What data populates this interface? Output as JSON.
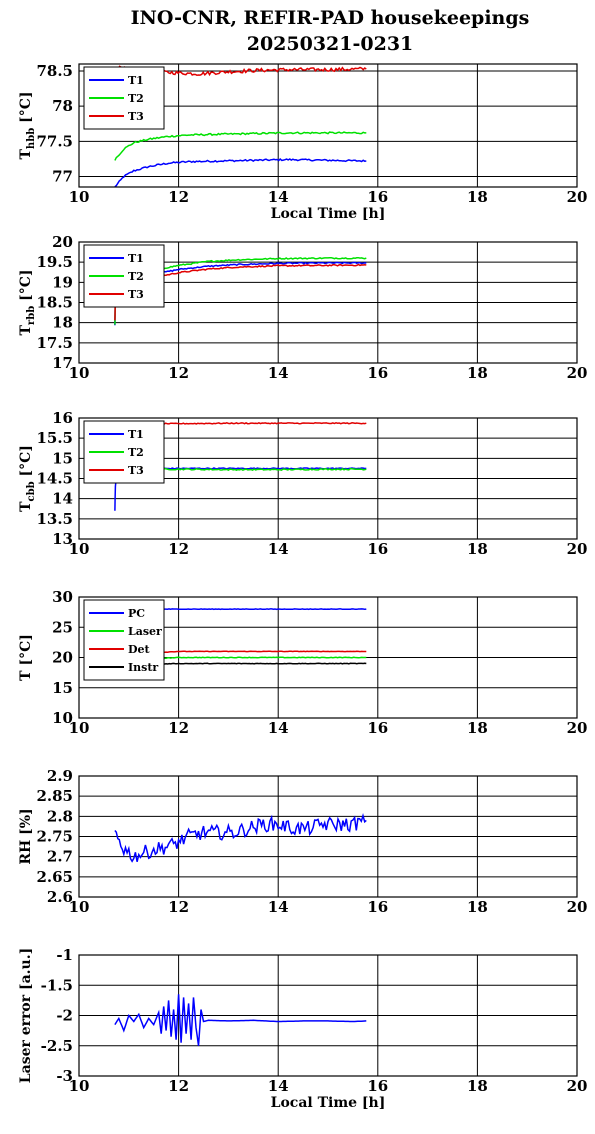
{
  "title": {
    "line1": "INO-CNR, REFIR-PAD housekeepings",
    "line2": "20250321-0231"
  },
  "colors": {
    "blue": "#0000ff",
    "green": "#00e000",
    "red": "#e00000",
    "black": "#000000"
  },
  "chart_data": [
    {
      "type": "line",
      "ylabel": "T_hbb [°C]",
      "ylabel_main": "T",
      "ylabel_sub": "hbb",
      "ylabel_unit": " [°C]",
      "xlabel": "Local Time [h]",
      "xlim": [
        10,
        20
      ],
      "ylim": [
        76.85,
        78.6
      ],
      "xticks": [
        10,
        12,
        14,
        16,
        18,
        20
      ],
      "xtick_labels": [
        "10",
        "12",
        "14",
        "16",
        "18",
        "20"
      ],
      "yticks": [
        77,
        77.5,
        78,
        78.5
      ],
      "ytick_labels": [
        "77",
        "77.5",
        "78",
        "78.5"
      ],
      "grid": true,
      "legend_position": "top-left",
      "series": [
        {
          "name": "T1",
          "color": "#0000ff",
          "noise": 0.012,
          "x": [
            10.72,
            10.9,
            11.1,
            11.4,
            11.8,
            12.2,
            12.8,
            13.5,
            14.2,
            15.0,
            15.77
          ],
          "y": [
            76.85,
            77.0,
            77.08,
            77.14,
            77.19,
            77.21,
            77.22,
            77.23,
            77.24,
            77.23,
            77.22
          ]
        },
        {
          "name": "T2",
          "color": "#00e000",
          "noise": 0.012,
          "x": [
            10.72,
            10.9,
            11.1,
            11.4,
            11.8,
            12.2,
            12.8,
            13.5,
            14.2,
            15.0,
            15.77
          ],
          "y": [
            77.24,
            77.39,
            77.48,
            77.53,
            77.57,
            77.59,
            77.6,
            77.61,
            77.62,
            77.62,
            77.62
          ]
        },
        {
          "name": "T3",
          "color": "#e00000",
          "noise": 0.025,
          "x": [
            10.72,
            11.2,
            11.8,
            12.4,
            13.0,
            13.6,
            14.2,
            15.0,
            15.77
          ],
          "y": [
            78.55,
            78.51,
            78.48,
            78.46,
            78.49,
            78.51,
            78.52,
            78.52,
            78.53
          ]
        }
      ]
    },
    {
      "type": "line",
      "ylabel": "T_rbb [°C]",
      "ylabel_main": "T",
      "ylabel_sub": "rbb",
      "ylabel_unit": " [°C]",
      "xlabel": "",
      "xlim": [
        10,
        20
      ],
      "ylim": [
        17,
        20
      ],
      "xticks": [
        10,
        12,
        14,
        16,
        18,
        20
      ],
      "xtick_labels": [
        "10",
        "12",
        "14",
        "16",
        "18",
        "20"
      ],
      "yticks": [
        17,
        17.5,
        18,
        18.5,
        19,
        19.5,
        20
      ],
      "ytick_labels": [
        "17",
        "17.5",
        "18",
        "18.5",
        "19",
        "19.5",
        "20"
      ],
      "grid": true,
      "legend_position": "top-left",
      "series": [
        {
          "name": "T1",
          "color": "#0000ff",
          "noise": 0.015,
          "x": [
            10.72,
            10.73,
            10.76,
            11.0,
            11.5,
            12.0,
            12.6,
            13.2,
            14.0,
            15.0,
            15.77
          ],
          "y": [
            17.95,
            18.6,
            19.0,
            19.1,
            19.2,
            19.32,
            19.4,
            19.44,
            19.47,
            19.48,
            19.48
          ]
        },
        {
          "name": "T2",
          "color": "#00e000",
          "noise": 0.015,
          "x": [
            10.72,
            10.73,
            10.76,
            11.0,
            11.5,
            12.0,
            12.6,
            13.2,
            14.0,
            15.0,
            15.77
          ],
          "y": [
            17.95,
            18.65,
            19.05,
            19.18,
            19.3,
            19.42,
            19.52,
            19.56,
            19.59,
            19.6,
            19.6
          ]
        },
        {
          "name": "T3",
          "color": "#e00000",
          "noise": 0.015,
          "x": [
            10.72,
            10.73,
            10.76,
            11.0,
            11.5,
            12.0,
            12.6,
            13.2,
            14.0,
            15.0,
            15.77
          ],
          "y": [
            18.05,
            18.55,
            18.95,
            19.02,
            19.12,
            19.24,
            19.33,
            19.38,
            19.41,
            19.42,
            19.43
          ]
        }
      ]
    },
    {
      "type": "line",
      "ylabel": "T_cbb [°C]",
      "ylabel_main": "T",
      "ylabel_sub": "cbb",
      "ylabel_unit": " [°C]",
      "xlabel": "",
      "xlim": [
        10,
        20
      ],
      "ylim": [
        13,
        16
      ],
      "xticks": [
        10,
        12,
        14,
        16,
        18,
        20
      ],
      "xtick_labels": [
        "10",
        "12",
        "14",
        "16",
        "18",
        "20"
      ],
      "yticks": [
        13,
        13.5,
        14,
        14.5,
        15,
        15.5,
        16
      ],
      "ytick_labels": [
        "13",
        "13.5",
        "14",
        "14.5",
        "15",
        "15.5",
        "16"
      ],
      "grid": true,
      "legend_position": "top-left",
      "series": [
        {
          "name": "T1",
          "color": "#0000ff",
          "noise": 0.012,
          "x": [
            10.72,
            10.73,
            10.76,
            11.0,
            12.0,
            13.0,
            14.0,
            15.0,
            15.77
          ],
          "y": [
            13.7,
            14.3,
            14.65,
            14.74,
            14.75,
            14.75,
            14.75,
            14.75,
            14.75
          ]
        },
        {
          "name": "T2",
          "color": "#00e000",
          "noise": 0.015,
          "x": [
            10.72,
            10.76,
            11.0,
            12.0,
            13.0,
            14.0,
            15.0,
            15.77
          ],
          "y": [
            14.72,
            14.73,
            14.74,
            14.73,
            14.72,
            14.72,
            14.73,
            14.73
          ]
        },
        {
          "name": "T3",
          "color": "#e00000",
          "noise": 0.012,
          "x": [
            10.72,
            11.0,
            12.0,
            13.0,
            14.0,
            15.0,
            15.77
          ],
          "y": [
            15.86,
            15.86,
            15.86,
            15.87,
            15.87,
            15.87,
            15.87
          ]
        }
      ]
    },
    {
      "type": "line",
      "ylabel": "T [°C]",
      "ylabel_main": "T",
      "ylabel_sub": "",
      "ylabel_unit": " [°C]",
      "xlabel": "",
      "xlim": [
        10,
        20
      ],
      "ylim": [
        10,
        30
      ],
      "xticks": [
        10,
        12,
        14,
        16,
        18,
        20
      ],
      "xtick_labels": [
        "10",
        "12",
        "14",
        "16",
        "18",
        "20"
      ],
      "yticks": [
        10,
        15,
        20,
        25,
        30
      ],
      "ytick_labels": [
        "10",
        "15",
        "20",
        "25",
        "30"
      ],
      "grid": true,
      "legend_position": "top-left",
      "series": [
        {
          "name": "PC",
          "color": "#0000ff",
          "noise": 0.04,
          "x": [
            10.72,
            12.0,
            13.0,
            14.0,
            15.0,
            15.77
          ],
          "y": [
            28.0,
            28.0,
            28.0,
            28.0,
            28.0,
            28.0
          ]
        },
        {
          "name": "Laser",
          "color": "#00e000",
          "noise": 0.04,
          "x": [
            10.72,
            11.0,
            11.5,
            12.0,
            13.0,
            14.0,
            15.0,
            15.77
          ],
          "y": [
            19.2,
            19.5,
            19.8,
            20.0,
            20.0,
            20.0,
            20.0,
            20.0
          ]
        },
        {
          "name": "Det",
          "color": "#e00000",
          "noise": 0.03,
          "x": [
            10.72,
            11.0,
            11.5,
            12.0,
            13.0,
            14.0,
            15.0,
            15.77
          ],
          "y": [
            20.3,
            20.5,
            20.8,
            21.0,
            21.0,
            21.0,
            21.0,
            21.0
          ]
        },
        {
          "name": "Instr",
          "color": "#000000",
          "noise": 0.04,
          "x": [
            10.72,
            11.0,
            11.5,
            12.0,
            13.0,
            14.0,
            15.0,
            15.77
          ],
          "y": [
            18.7,
            18.8,
            18.9,
            19.0,
            19.0,
            19.0,
            19.0,
            19.0
          ]
        }
      ]
    },
    {
      "type": "line",
      "ylabel": "RH [%]",
      "ylabel_main": "RH [%]",
      "ylabel_sub": "",
      "ylabel_unit": "",
      "xlabel": "",
      "xlim": [
        10,
        20
      ],
      "ylim": [
        2.6,
        2.9
      ],
      "xticks": [
        10,
        12,
        14,
        16,
        18,
        20
      ],
      "xtick_labels": [
        "10",
        "12",
        "14",
        "16",
        "18",
        "20"
      ],
      "yticks": [
        2.6,
        2.65,
        2.7,
        2.75,
        2.8,
        2.85,
        2.9
      ],
      "ytick_labels": [
        "2.6",
        "2.65",
        "2.7",
        "2.75",
        "2.8",
        "2.85",
        "2.9"
      ],
      "grid": true,
      "legend_position": "none",
      "series": [
        {
          "name": "",
          "color": "#0000ff",
          "noise": 0.018,
          "x": [
            10.72,
            10.9,
            11.1,
            11.3,
            11.6,
            11.9,
            12.2,
            12.5,
            12.8,
            13.1,
            13.4,
            13.7,
            14.0,
            14.3,
            14.6,
            14.9,
            15.2,
            15.5,
            15.77
          ],
          "y": [
            2.76,
            2.72,
            2.7,
            2.71,
            2.72,
            2.73,
            2.75,
            2.76,
            2.76,
            2.76,
            2.77,
            2.78,
            2.78,
            2.77,
            2.77,
            2.78,
            2.78,
            2.78,
            2.79
          ]
        }
      ]
    },
    {
      "type": "line",
      "ylabel": "Laser error [a.u.]",
      "ylabel_main": "Laser error [a.u.]",
      "ylabel_sub": "",
      "ylabel_unit": "",
      "xlabel": "Local Time [h]",
      "xlim": [
        10,
        20
      ],
      "ylim": [
        -3,
        -1
      ],
      "xticks": [
        10,
        12,
        14,
        16,
        18,
        20
      ],
      "xtick_labels": [
        "10",
        "12",
        "14",
        "16",
        "18",
        "20"
      ],
      "yticks": [
        -3,
        -2.5,
        -2,
        -1.5,
        -1
      ],
      "ytick_labels": [
        "-3",
        "-2.5",
        "-2",
        "-1.5",
        "-1"
      ],
      "grid": true,
      "legend_position": "none",
      "series": [
        {
          "name": "",
          "color": "#0000ff",
          "noise": 0,
          "x": [
            10.72,
            10.8,
            10.9,
            11.0,
            11.1,
            11.2,
            11.3,
            11.4,
            11.5,
            11.6,
            11.65,
            11.7,
            11.75,
            11.8,
            11.85,
            11.9,
            11.95,
            12.0,
            12.05,
            12.1,
            12.15,
            12.2,
            12.25,
            12.3,
            12.35,
            12.4,
            12.45,
            12.5,
            12.6,
            13.0,
            13.5,
            14.0,
            14.5,
            15.0,
            15.5,
            15.77
          ],
          "y": [
            -2.15,
            -2.05,
            -2.25,
            -2.0,
            -2.1,
            -1.98,
            -2.2,
            -2.05,
            -2.15,
            -1.95,
            -2.3,
            -1.85,
            -2.25,
            -1.75,
            -2.35,
            -1.9,
            -2.4,
            -1.65,
            -2.45,
            -1.7,
            -2.3,
            -1.8,
            -2.4,
            -1.7,
            -2.2,
            -2.5,
            -1.9,
            -2.1,
            -2.08,
            -2.09,
            -2.08,
            -2.1,
            -2.09,
            -2.09,
            -2.1,
            -2.09
          ]
        }
      ]
    }
  ]
}
